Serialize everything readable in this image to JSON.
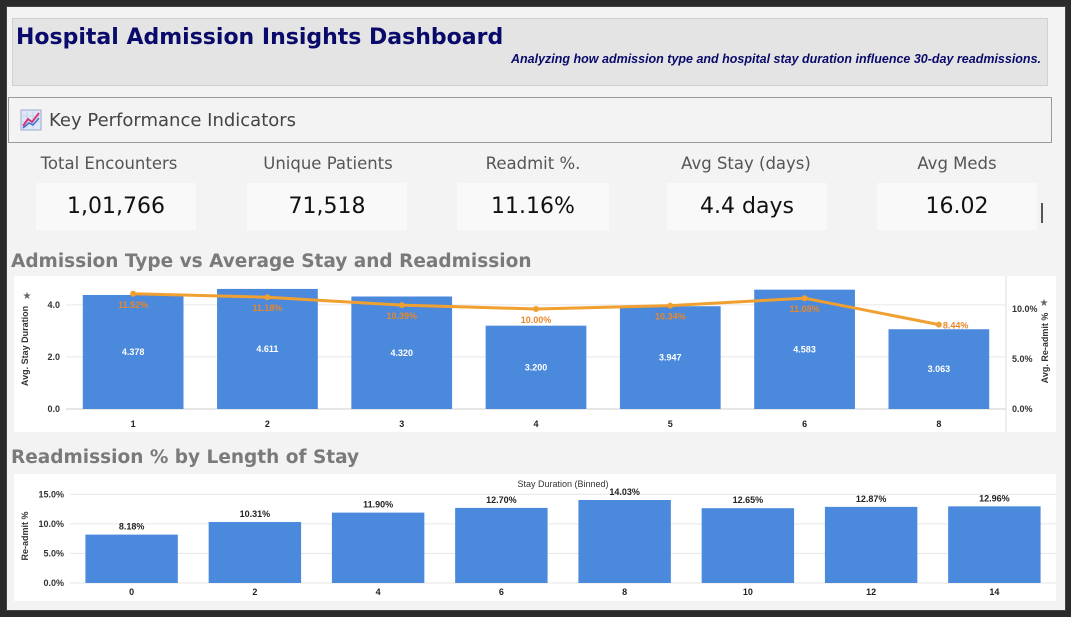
{
  "header": {
    "title": "Hospital Admission Insights Dashboard",
    "subtitle": "Analyzing how admission type and hospital stay duration influence 30-day readmissions."
  },
  "kpi": {
    "section_title": "Key Performance Indicators",
    "icon": "trend-chart-icon",
    "cards": [
      {
        "label": "Total Encounters",
        "value": "1,01,766"
      },
      {
        "label": "Unique Patients",
        "value": "71,518"
      },
      {
        "label": "Readmit %.",
        "value": "11.16%"
      },
      {
        "label": "Avg Stay (days)",
        "value": "4.4 days"
      },
      {
        "label": "Avg Meds",
        "value": "16.02"
      }
    ]
  },
  "colors": {
    "bar": "#4a89dc",
    "line": "#f0a030",
    "line_label": "#e8872a",
    "title_navy": "#0a0a6b"
  },
  "chart_data": [
    {
      "type": "bar",
      "section_title": "Admission Type vs Average Stay and Readmission",
      "categories": [
        "1",
        "2",
        "3",
        "4",
        "5",
        "6",
        "8"
      ],
      "series": [
        {
          "name": "Avg. Stay Duration",
          "values": [
            4.378,
            4.611,
            4.32,
            3.2,
            3.947,
            4.583,
            3.063
          ],
          "labels": [
            "4.378",
            "4.611",
            "4.320",
            "3.200",
            "3.947",
            "4.583",
            "3.063"
          ]
        },
        {
          "name": "Avg. Re-admit %",
          "type": "line",
          "values": [
            11.52,
            11.18,
            10.39,
            10.0,
            10.34,
            11.08,
            8.44
          ],
          "labels": [
            "11.52%",
            "11.18%",
            "10.39%",
            "10.00%",
            "10.34%",
            "11.08%",
            "8.44%"
          ]
        }
      ],
      "ylabel": "Avg. Stay Duration",
      "ylabel_right": "Avg. Re-admit %",
      "ylim": [
        0,
        4.8
      ],
      "yticks": [
        {
          "v": 0,
          "label": "0.0"
        },
        {
          "v": 2,
          "label": "2.0"
        },
        {
          "v": 4,
          "label": "4.0"
        }
      ],
      "ylim_right": [
        0,
        12.5
      ],
      "yticks_right": [
        {
          "v": 0,
          "label": "0.0%"
        },
        {
          "v": 5,
          "label": "5.0%"
        },
        {
          "v": 10,
          "label": "10.0%"
        }
      ],
      "grid": true
    },
    {
      "type": "bar",
      "section_title": "Readmission % by Length of Stay",
      "xlabel": "Stay Duration (Binned)",
      "ylabel": "Re-admit %",
      "categories": [
        "0",
        "2",
        "4",
        "6",
        "8",
        "10",
        "12",
        "14"
      ],
      "values": [
        8.18,
        10.31,
        11.9,
        12.7,
        14.03,
        12.65,
        12.87,
        12.96
      ],
      "labels": [
        "8.18%",
        "10.31%",
        "11.90%",
        "12.70%",
        "14.03%",
        "12.65%",
        "12.87%",
        "12.96%"
      ],
      "ylim": [
        0,
        16.4
      ],
      "yticks": [
        {
          "v": 0,
          "label": "0.0%"
        },
        {
          "v": 5,
          "label": "5.0%"
        },
        {
          "v": 10,
          "label": "10.0%"
        },
        {
          "v": 15,
          "label": "15.0%"
        }
      ],
      "grid": true
    }
  ]
}
